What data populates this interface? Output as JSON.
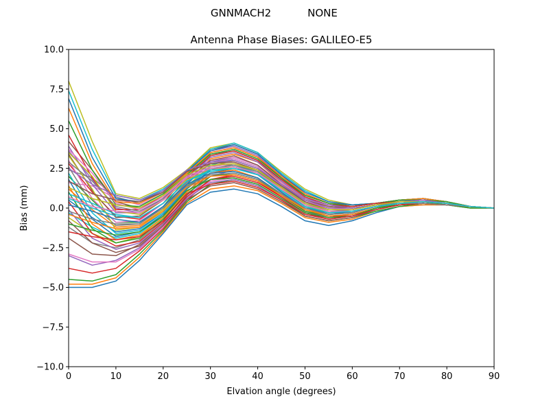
{
  "figure": {
    "suptitle_station": "GNNMACH2",
    "suptitle_radome": "NONE"
  },
  "chart_data": {
    "type": "line",
    "title": "Antenna Phase Biases: GALILEO-E5",
    "xlabel": "Elvation angle (degrees)",
    "ylabel": "Bias (mm)",
    "xlim": [
      0,
      90
    ],
    "ylim": [
      -10,
      10
    ],
    "x_ticks": [
      "0",
      "10",
      "20",
      "30",
      "40",
      "50",
      "60",
      "70",
      "80",
      "90"
    ],
    "y_ticks": [
      "10.0",
      "7.5",
      "5.0",
      "2.5",
      "0.0",
      "−2.5",
      "−5.0",
      "−7.5",
      "−10.0"
    ],
    "grid": false,
    "legend": "none",
    "x": [
      0,
      5,
      10,
      15,
      20,
      25,
      30,
      35,
      40,
      45,
      50,
      55,
      60,
      65,
      70,
      75,
      80,
      85,
      90
    ],
    "series": [
      {
        "color": "#1f77b4",
        "values": [
          -5.0,
          -5.0,
          -4.6,
          -3.3,
          -1.6,
          0.2,
          1.0,
          1.2,
          0.9,
          0.1,
          -0.8,
          -1.1,
          -0.8,
          -0.3,
          0.1,
          0.2,
          0.2,
          0.0,
          0.0
        ]
      },
      {
        "color": "#ff7f0e",
        "values": [
          -4.8,
          -4.8,
          -4.4,
          -3.1,
          -1.5,
          0.3,
          1.2,
          1.4,
          1.1,
          0.3,
          -0.6,
          -0.9,
          -0.7,
          -0.2,
          0.1,
          0.2,
          0.2,
          0.0,
          0.0
        ]
      },
      {
        "color": "#2ca02c",
        "values": [
          -4.5,
          -4.6,
          -4.2,
          -2.9,
          -1.4,
          0.4,
          1.5,
          1.8,
          1.4,
          0.5,
          -0.5,
          -0.8,
          -0.6,
          -0.2,
          0.1,
          0.3,
          0.2,
          0.0,
          0.0
        ]
      },
      {
        "color": "#d62728",
        "values": [
          -3.8,
          -4.1,
          -3.8,
          -2.7,
          -1.3,
          0.5,
          1.8,
          2.1,
          1.7,
          0.7,
          -0.3,
          -0.7,
          -0.5,
          -0.1,
          0.2,
          0.3,
          0.2,
          0.1,
          0.0
        ]
      },
      {
        "color": "#9467bd",
        "values": [
          -3.0,
          -3.6,
          -3.3,
          -2.5,
          -1.1,
          0.7,
          2.0,
          2.4,
          1.9,
          0.9,
          -0.2,
          -0.6,
          -0.4,
          -0.1,
          0.2,
          0.3,
          0.2,
          0.1,
          0.0
        ]
      },
      {
        "color": "#8c564b",
        "values": [
          -1.9,
          -2.9,
          -3.0,
          -2.3,
          -1.0,
          0.8,
          2.2,
          2.5,
          2.1,
          1.0,
          -0.1,
          -0.5,
          -0.4,
          0.0,
          0.3,
          0.4,
          0.3,
          0.1,
          0.0
        ]
      },
      {
        "color": "#e377c2",
        "values": [
          -2.9,
          -3.4,
          -3.4,
          -2.6,
          -1.2,
          0.6,
          1.7,
          1.9,
          1.5,
          0.6,
          -0.4,
          -0.7,
          -0.5,
          -0.1,
          0.2,
          0.3,
          0.2,
          0.1,
          0.0
        ]
      },
      {
        "color": "#7f7f7f",
        "values": [
          -1.2,
          -2.2,
          -2.5,
          -2.0,
          -0.8,
          1.0,
          2.4,
          2.8,
          2.3,
          1.2,
          0.1,
          -0.4,
          -0.3,
          0.1,
          0.3,
          0.4,
          0.3,
          0.1,
          0.0
        ]
      },
      {
        "color": "#bcbd22",
        "values": [
          -0.6,
          -1.6,
          -2.2,
          -1.8,
          -0.6,
          1.2,
          2.6,
          3.0,
          2.5,
          1.3,
          0.2,
          -0.3,
          -0.2,
          0.1,
          0.3,
          0.4,
          0.3,
          0.1,
          0.0
        ]
      },
      {
        "color": "#17becf",
        "values": [
          -0.3,
          -1.2,
          -1.9,
          -1.6,
          -0.5,
          1.3,
          2.7,
          3.1,
          2.6,
          1.4,
          0.3,
          -0.2,
          -0.2,
          0.1,
          0.4,
          0.5,
          0.3,
          0.1,
          0.0
        ]
      },
      {
        "color": "#1f77b4",
        "values": [
          0.5,
          -0.6,
          -1.5,
          -1.3,
          -0.3,
          1.5,
          2.9,
          3.2,
          2.7,
          1.5,
          0.4,
          -0.1,
          -0.1,
          0.2,
          0.4,
          0.5,
          0.3,
          0.1,
          0.0
        ]
      },
      {
        "color": "#ff7f0e",
        "values": [
          1.2,
          -0.1,
          -1.2,
          -1.1,
          -0.1,
          1.7,
          3.1,
          3.4,
          2.9,
          1.6,
          0.5,
          0.0,
          -0.1,
          0.2,
          0.4,
          0.5,
          0.3,
          0.1,
          0.0
        ]
      },
      {
        "color": "#2ca02c",
        "values": [
          2.0,
          0.5,
          -0.9,
          -0.9,
          0.1,
          1.9,
          3.3,
          3.6,
          3.0,
          1.7,
          0.6,
          0.1,
          0.0,
          0.2,
          0.5,
          0.5,
          0.4,
          0.1,
          0.0
        ]
      },
      {
        "color": "#d62728",
        "values": [
          2.8,
          1.0,
          -0.5,
          -0.7,
          0.3,
          2.1,
          3.5,
          3.8,
          3.2,
          1.9,
          0.7,
          0.2,
          0.1,
          0.3,
          0.5,
          0.6,
          0.4,
          0.1,
          0.0
        ]
      },
      {
        "color": "#9467bd",
        "values": [
          3.6,
          1.8,
          0.0,
          -0.3,
          0.6,
          2.3,
          3.6,
          3.9,
          3.3,
          2.0,
          0.8,
          0.3,
          0.1,
          0.3,
          0.5,
          0.6,
          0.4,
          0.1,
          0.0
        ]
      },
      {
        "color": "#8c564b",
        "values": [
          4.2,
          2.4,
          0.4,
          0.0,
          0.8,
          2.4,
          3.7,
          4.0,
          3.4,
          2.1,
          0.9,
          0.3,
          0.2,
          0.3,
          0.5,
          0.6,
          0.4,
          0.1,
          0.0
        ]
      },
      {
        "color": "#e377c2",
        "values": [
          1.6,
          1.4,
          0.6,
          0.2,
          0.9,
          2.2,
          3.0,
          3.2,
          2.7,
          1.6,
          0.6,
          0.1,
          0.0,
          0.2,
          0.4,
          0.5,
          0.3,
          0.1,
          0.0
        ]
      },
      {
        "color": "#7f7f7f",
        "values": [
          2.4,
          1.9,
          0.7,
          0.3,
          1.0,
          2.3,
          3.4,
          3.6,
          3.0,
          1.8,
          0.7,
          0.2,
          0.1,
          0.3,
          0.5,
          0.5,
          0.4,
          0.1,
          0.0
        ]
      },
      {
        "color": "#bcbd22",
        "values": [
          8.0,
          4.2,
          0.9,
          0.6,
          1.3,
          2.4,
          3.8,
          4.1,
          3.5,
          2.3,
          1.2,
          0.5,
          0.2,
          0.3,
          0.5,
          0.6,
          0.4,
          0.1,
          0.0
        ]
      },
      {
        "color": "#17becf",
        "values": [
          7.4,
          3.7,
          0.8,
          0.5,
          1.2,
          2.3,
          3.7,
          4.1,
          3.5,
          2.2,
          1.1,
          0.4,
          0.2,
          0.3,
          0.5,
          0.6,
          0.4,
          0.1,
          0.0
        ]
      },
      {
        "color": "#1f77b4",
        "values": [
          6.9,
          3.2,
          0.6,
          0.4,
          1.1,
          2.3,
          3.6,
          4.0,
          3.4,
          2.1,
          1.0,
          0.4,
          0.2,
          0.3,
          0.5,
          0.6,
          0.4,
          0.1,
          0.0
        ]
      },
      {
        "color": "#ff7f0e",
        "values": [
          6.3,
          2.8,
          0.4,
          0.3,
          1.0,
          2.2,
          3.5,
          3.8,
          3.2,
          2.0,
          0.9,
          0.3,
          0.1,
          0.3,
          0.5,
          0.6,
          0.4,
          0.1,
          0.0
        ]
      },
      {
        "color": "#2ca02c",
        "values": [
          5.5,
          2.4,
          0.2,
          0.1,
          0.9,
          2.1,
          3.4,
          3.7,
          3.1,
          1.9,
          0.8,
          0.3,
          0.1,
          0.3,
          0.5,
          0.5,
          0.4,
          0.1,
          0.0
        ]
      },
      {
        "color": "#d62728",
        "values": [
          4.6,
          1.9,
          -0.1,
          -0.1,
          0.8,
          2.0,
          3.3,
          3.6,
          3.0,
          1.8,
          0.7,
          0.2,
          0.1,
          0.3,
          0.4,
          0.5,
          0.3,
          0.1,
          0.0
        ]
      },
      {
        "color": "#9467bd",
        "values": [
          3.9,
          1.5,
          -0.3,
          -0.3,
          0.6,
          1.9,
          3.2,
          3.5,
          2.9,
          1.7,
          0.6,
          0.2,
          0.0,
          0.2,
          0.4,
          0.5,
          0.3,
          0.1,
          0.0
        ]
      },
      {
        "color": "#8c564b",
        "values": [
          3.4,
          1.1,
          -0.6,
          -0.5,
          0.5,
          1.8,
          3.0,
          3.3,
          2.7,
          1.5,
          0.5,
          0.1,
          0.0,
          0.2,
          0.4,
          0.5,
          0.3,
          0.1,
          0.0
        ]
      },
      {
        "color": "#e377c2",
        "values": [
          3.0,
          0.6,
          -0.9,
          -0.8,
          0.3,
          1.7,
          2.9,
          3.1,
          2.6,
          1.4,
          0.4,
          0.0,
          -0.1,
          0.2,
          0.4,
          0.5,
          0.3,
          0.1,
          0.0
        ]
      },
      {
        "color": "#7f7f7f",
        "values": [
          2.6,
          0.2,
          -1.1,
          -1.0,
          0.1,
          1.6,
          2.8,
          3.0,
          2.5,
          1.3,
          0.3,
          -0.1,
          -0.1,
          0.2,
          0.4,
          0.4,
          0.3,
          0.1,
          0.0
        ]
      },
      {
        "color": "#bcbd22",
        "values": [
          3.3,
          1.2,
          -1.4,
          -1.2,
          -0.1,
          1.4,
          2.6,
          2.8,
          2.3,
          1.2,
          0.2,
          -0.2,
          -0.2,
          0.1,
          0.3,
          0.4,
          0.3,
          0.1,
          0.0
        ]
      },
      {
        "color": "#17becf",
        "values": [
          2.2,
          -0.3,
          -1.6,
          -1.4,
          -0.3,
          1.3,
          2.5,
          2.7,
          2.2,
          1.1,
          0.1,
          -0.3,
          -0.2,
          0.1,
          0.3,
          0.4,
          0.3,
          0.1,
          0.0
        ]
      },
      {
        "color": "#1f77b4",
        "values": [
          1.8,
          -0.7,
          -1.8,
          -1.5,
          -0.4,
          1.2,
          2.4,
          2.6,
          2.1,
          1.0,
          0.0,
          -0.3,
          -0.3,
          0.1,
          0.3,
          0.4,
          0.3,
          0.1,
          0.0
        ]
      },
      {
        "color": "#ff7f0e",
        "values": [
          1.4,
          -1.0,
          -2.0,
          -1.7,
          -0.6,
          1.0,
          2.2,
          2.4,
          1.9,
          0.9,
          -0.1,
          -0.4,
          -0.3,
          0.1,
          0.3,
          0.4,
          0.2,
          0.1,
          0.0
        ]
      },
      {
        "color": "#2ca02c",
        "values": [
          1.0,
          -1.3,
          -2.2,
          -1.9,
          -0.7,
          0.9,
          2.0,
          2.2,
          1.8,
          0.8,
          -0.2,
          -0.5,
          -0.4,
          0.0,
          0.3,
          0.4,
          0.2,
          0.1,
          0.0
        ]
      },
      {
        "color": "#d62728",
        "values": [
          0.4,
          -1.6,
          -2.4,
          -2.1,
          -0.9,
          0.7,
          1.8,
          2.0,
          1.6,
          0.7,
          -0.3,
          -0.6,
          -0.4,
          0.0,
          0.2,
          0.3,
          0.2,
          0.1,
          0.0
        ]
      },
      {
        "color": "#9467bd",
        "values": [
          -0.1,
          -1.9,
          -2.6,
          -2.2,
          -1.0,
          0.6,
          1.6,
          1.8,
          1.4,
          0.5,
          -0.4,
          -0.7,
          -0.5,
          -0.1,
          0.2,
          0.3,
          0.2,
          0.1,
          0.0
        ]
      },
      {
        "color": "#8c564b",
        "values": [
          -0.8,
          -2.2,
          -2.8,
          -2.4,
          -1.1,
          0.5,
          1.4,
          1.6,
          1.2,
          0.4,
          -0.5,
          -0.8,
          -0.6,
          -0.1,
          0.2,
          0.3,
          0.2,
          0.1,
          0.0
        ]
      },
      {
        "color": "#e377c2",
        "values": [
          3.7,
          2.2,
          0.3,
          -0.1,
          0.7,
          2.0,
          2.6,
          2.8,
          2.4,
          1.4,
          0.4,
          -0.1,
          -0.1,
          0.2,
          0.4,
          0.4,
          0.3,
          0.1,
          0.0
        ]
      },
      {
        "color": "#7f7f7f",
        "values": [
          2.9,
          1.7,
          0.1,
          -0.2,
          0.6,
          1.9,
          2.5,
          2.7,
          2.3,
          1.3,
          0.3,
          -0.2,
          -0.1,
          0.2,
          0.3,
          0.4,
          0.3,
          0.1,
          0.0
        ]
      },
      {
        "color": "#bcbd22",
        "values": [
          3.5,
          2.0,
          -0.2,
          -0.4,
          0.5,
          1.8,
          2.4,
          2.6,
          2.2,
          1.2,
          0.2,
          -0.2,
          -0.2,
          0.1,
          0.3,
          0.4,
          0.3,
          0.1,
          0.0
        ]
      },
      {
        "color": "#17becf",
        "values": [
          0.9,
          0.3,
          -0.4,
          -0.6,
          0.3,
          1.7,
          2.3,
          2.5,
          2.1,
          1.1,
          0.1,
          -0.3,
          -0.2,
          0.1,
          0.3,
          0.4,
          0.3,
          0.1,
          0.0
        ]
      },
      {
        "color": "#1f77b4",
        "values": [
          0.2,
          -0.2,
          -0.7,
          -0.9,
          0.1,
          1.5,
          2.2,
          2.3,
          1.9,
          0.9,
          0.0,
          -0.4,
          -0.3,
          0.1,
          0.3,
          0.3,
          0.2,
          0.1,
          0.0
        ]
      },
      {
        "color": "#ff7f0e",
        "values": [
          -0.4,
          -0.9,
          -1.3,
          -1.2,
          -0.2,
          1.3,
          2.0,
          2.1,
          1.7,
          0.8,
          -0.1,
          -0.5,
          -0.4,
          0.0,
          0.2,
          0.3,
          0.2,
          0.1,
          0.0
        ]
      },
      {
        "color": "#2ca02c",
        "values": [
          -1.0,
          -1.4,
          -1.7,
          -1.5,
          -0.5,
          1.1,
          1.8,
          1.9,
          1.5,
          0.6,
          -0.3,
          -0.6,
          -0.5,
          0.0,
          0.2,
          0.3,
          0.2,
          0.1,
          0.0
        ]
      },
      {
        "color": "#d62728",
        "values": [
          -1.5,
          -1.8,
          -2.0,
          -1.8,
          -0.8,
          0.9,
          1.5,
          1.7,
          1.3,
          0.5,
          -0.4,
          -0.7,
          -0.5,
          -0.1,
          0.2,
          0.3,
          0.2,
          0.1,
          0.0
        ]
      },
      {
        "color": "#9467bd",
        "values": [
          2.5,
          1.5,
          0.8,
          0.5,
          1.1,
          2.4,
          2.9,
          3.0,
          2.5,
          1.5,
          0.5,
          0.0,
          0.0,
          0.2,
          0.4,
          0.5,
          0.3,
          0.1,
          0.0
        ]
      },
      {
        "color": "#8c564b",
        "values": [
          1.7,
          0.9,
          0.5,
          0.4,
          1.0,
          2.3,
          2.8,
          2.9,
          2.4,
          1.4,
          0.4,
          -0.1,
          -0.1,
          0.2,
          0.4,
          0.4,
          0.3,
          0.1,
          0.0
        ]
      },
      {
        "color": "#e377c2",
        "values": [
          0.7,
          0.1,
          -0.2,
          -0.3,
          0.5,
          1.9,
          2.5,
          2.6,
          2.2,
          1.2,
          0.2,
          -0.2,
          -0.2,
          0.1,
          0.3,
          0.4,
          0.3,
          0.1,
          0.0
        ]
      },
      {
        "color": "#7f7f7f",
        "values": [
          -0.2,
          -0.7,
          -1.0,
          -1.0,
          0.0,
          1.4,
          2.1,
          2.2,
          1.8,
          0.9,
          0.0,
          -0.4,
          -0.3,
          0.1,
          0.3,
          0.3,
          0.2,
          0.1,
          0.0
        ]
      },
      {
        "color": "#bcbd22",
        "values": [
          1.3,
          0.6,
          0.2,
          0.0,
          0.8,
          2.1,
          2.7,
          2.8,
          2.4,
          1.3,
          0.3,
          -0.1,
          -0.1,
          0.2,
          0.4,
          0.4,
          0.3,
          0.1,
          0.0
        ]
      },
      {
        "color": "#17becf",
        "values": [
          0.6,
          0.0,
          -0.5,
          -0.6,
          0.3,
          1.7,
          2.4,
          2.5,
          2.1,
          1.1,
          0.1,
          -0.3,
          -0.2,
          0.1,
          0.3,
          0.4,
          0.3,
          0.1,
          0.0
        ]
      }
    ]
  }
}
